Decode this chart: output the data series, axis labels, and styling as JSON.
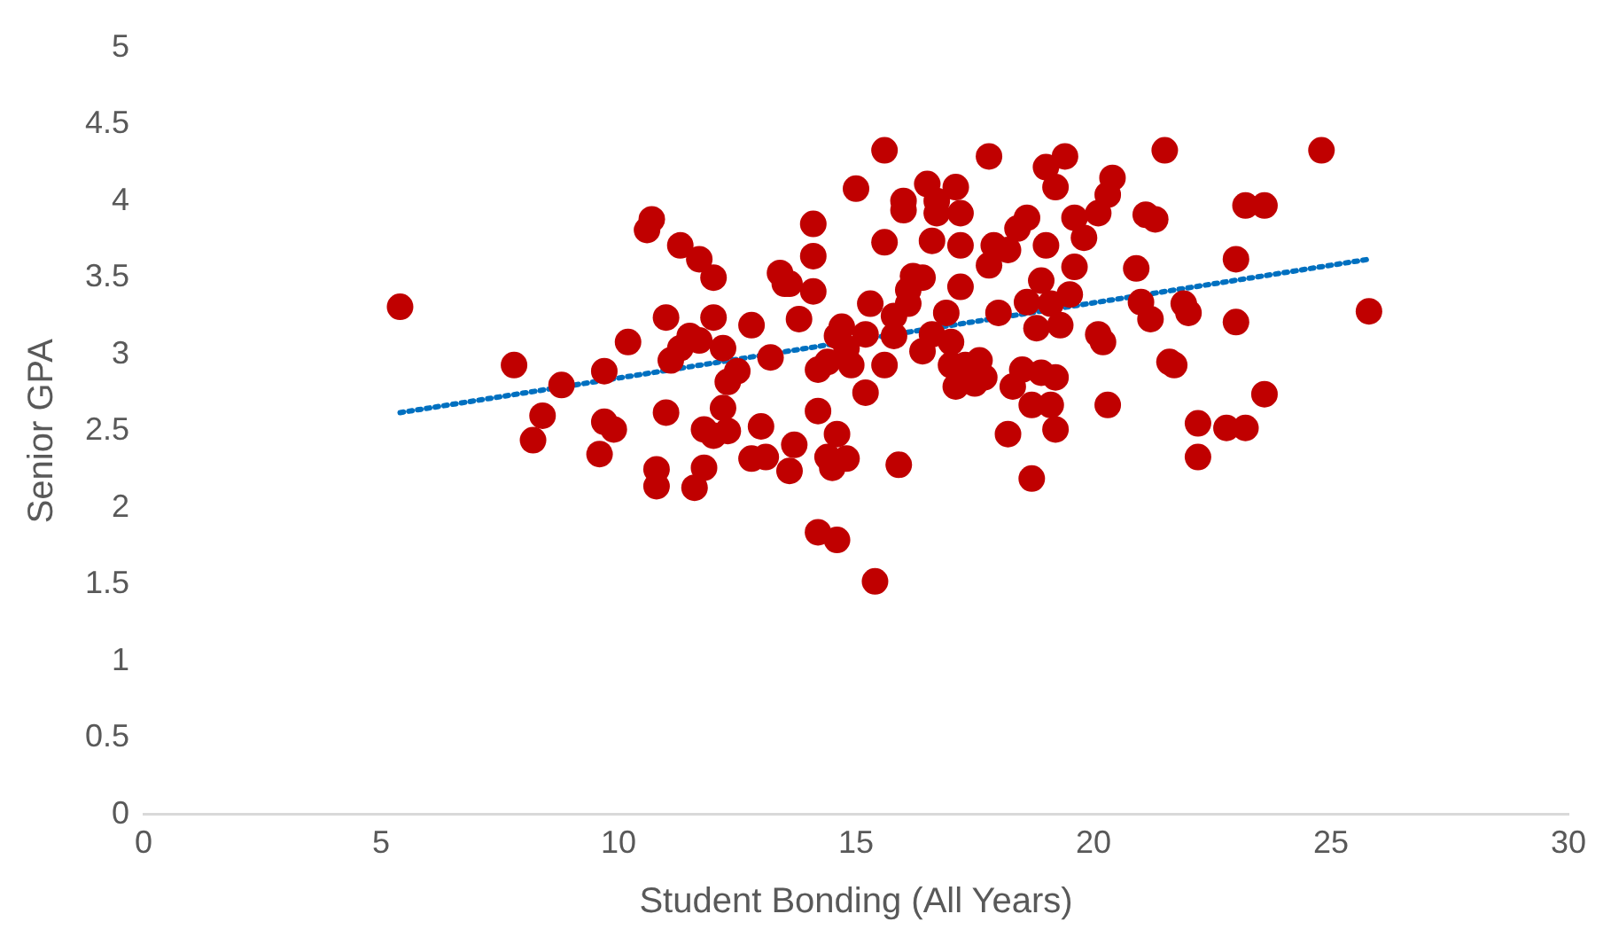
{
  "chart_data": {
    "type": "scatter",
    "xlabel": "Student Bonding (All Years)",
    "ylabel": "Senior GPA",
    "xlim": [
      0,
      30
    ],
    "xticks": [
      0,
      5,
      10,
      15,
      20,
      25,
      30
    ],
    "ylim": [
      0,
      5
    ],
    "yticks": [
      0,
      0.5,
      1,
      1.5,
      2,
      2.5,
      3,
      3.5,
      4,
      4.5,
      5
    ],
    "grid": false,
    "legend": false,
    "series": [
      {
        "color": "#c00000",
        "marker": "circle",
        "x": [
          5.4,
          7.8,
          8.2,
          8.4,
          8.8,
          9.6,
          9.7,
          9.7,
          9.9,
          10.2,
          10.8,
          10.8,
          10.6,
          10.7,
          11.0,
          11.0,
          11.1,
          11.3,
          11.3,
          11.5,
          11.6,
          11.7,
          11.7,
          11.8,
          11.8,
          12.0,
          12.0,
          12.0,
          12.2,
          12.2,
          12.3,
          12.3,
          12.5,
          12.8,
          12.8,
          13.0,
          13.1,
          13.2,
          13.4,
          13.5,
          13.6,
          13.6,
          13.7,
          13.8,
          14.1,
          14.1,
          14.1,
          14.2,
          14.2,
          14.2,
          14.4,
          14.4,
          14.5,
          14.6,
          14.6,
          14.6,
          14.7,
          14.8,
          14.8,
          14.9,
          15.0,
          15.2,
          15.2,
          15.3,
          15.4,
          15.6,
          15.6,
          15.6,
          15.8,
          15.8,
          15.9,
          16.0,
          16.0,
          16.1,
          16.1,
          16.2,
          16.4,
          16.4,
          16.5,
          16.6,
          16.6,
          16.7,
          16.7,
          16.9,
          17.0,
          17.0,
          17.1,
          17.1,
          17.2,
          17.2,
          17.2,
          17.3,
          17.5,
          17.6,
          17.7,
          17.8,
          17.8,
          17.9,
          18.0,
          18.2,
          18.2,
          18.3,
          18.4,
          18.5,
          18.6,
          18.6,
          18.7,
          18.7,
          18.8,
          18.9,
          18.9,
          19.0,
          19.0,
          19.1,
          19.1,
          19.2,
          19.2,
          19.2,
          19.3,
          19.4,
          19.5,
          19.6,
          19.6,
          19.8,
          20.1,
          20.1,
          20.2,
          20.3,
          20.3,
          20.4,
          20.9,
          21.0,
          21.1,
          21.2,
          21.3,
          21.5,
          21.6,
          21.7,
          21.9,
          22.0,
          22.2,
          22.2,
          22.8,
          23.0,
          23.0,
          23.2,
          23.2,
          23.6,
          23.6,
          24.8,
          25.8
        ],
        "values": [
          3.31,
          2.93,
          2.44,
          2.6,
          2.8,
          2.35,
          2.56,
          2.89,
          2.51,
          3.08,
          2.14,
          2.25,
          3.81,
          3.88,
          3.24,
          2.62,
          2.96,
          3.71,
          3.04,
          3.12,
          2.13,
          3.62,
          3.09,
          2.51,
          2.26,
          3.5,
          3.24,
          2.47,
          3.04,
          2.65,
          2.82,
          2.5,
          2.89,
          3.19,
          2.32,
          2.53,
          2.33,
          2.98,
          3.53,
          3.46,
          3.46,
          2.24,
          2.41,
          3.23,
          3.85,
          3.64,
          3.41,
          2.9,
          1.84,
          2.63,
          2.33,
          2.95,
          2.26,
          3.12,
          2.48,
          1.79,
          3.18,
          2.32,
          3.04,
          2.93,
          4.08,
          3.13,
          2.75,
          3.33,
          1.52,
          3.73,
          4.33,
          2.93,
          3.25,
          3.12,
          2.28,
          4.0,
          3.94,
          3.33,
          3.42,
          3.51,
          3.02,
          3.5,
          4.11,
          3.74,
          3.13,
          4.0,
          3.92,
          3.27,
          2.93,
          3.08,
          2.79,
          4.09,
          3.44,
          3.92,
          3.71,
          2.93,
          2.81,
          2.96,
          2.85,
          3.58,
          4.29,
          3.71,
          3.27,
          3.68,
          2.48,
          2.79,
          3.82,
          2.9,
          3.89,
          3.34,
          2.67,
          2.19,
          3.17,
          3.48,
          2.88,
          4.22,
          3.71,
          2.67,
          3.33,
          2.85,
          4.09,
          2.51,
          3.19,
          4.29,
          3.39,
          3.57,
          3.89,
          3.76,
          3.13,
          3.92,
          3.08,
          2.67,
          4.04,
          4.15,
          3.56,
          3.34,
          3.91,
          3.23,
          3.88,
          4.33,
          2.95,
          2.93,
          3.33,
          3.27,
          2.55,
          2.33,
          2.52,
          3.62,
          3.21,
          3.97,
          2.52,
          3.97,
          2.74,
          4.33,
          3.28
        ]
      },
      {
        "type": "line",
        "color": "#0070c0",
        "marker": "none",
        "line_style": "dotted",
        "x": [
          5.4,
          25.8
        ],
        "values": [
          2.62,
          3.62
        ]
      }
    ]
  }
}
